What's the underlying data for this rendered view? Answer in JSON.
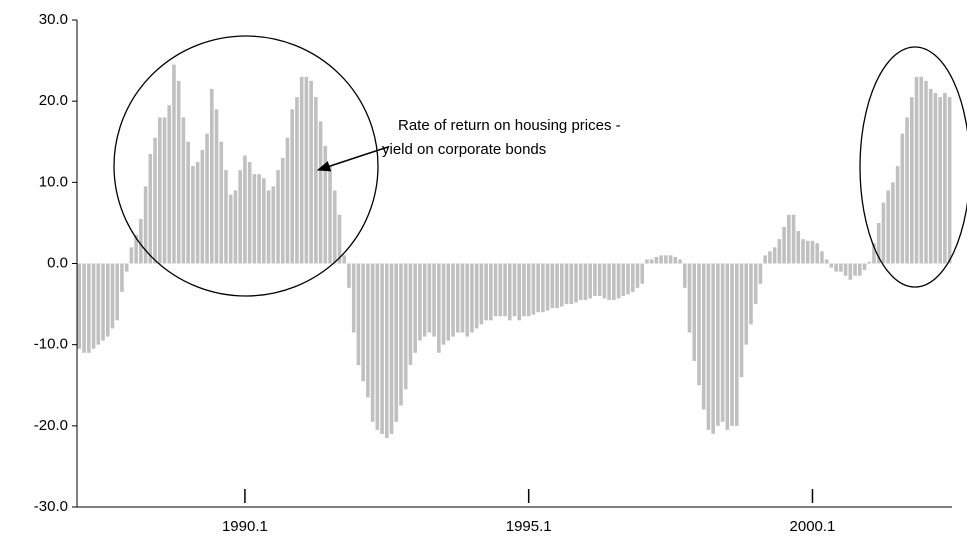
{
  "chart_data": {
    "type": "bar",
    "categories": [
      null,
      null,
      null,
      null,
      null,
      null,
      null,
      null,
      null,
      null,
      null,
      null,
      null,
      null,
      null,
      null,
      null,
      null,
      null,
      null,
      null,
      null,
      null,
      null,
      null,
      null,
      null,
      null,
      null,
      null,
      null,
      null,
      null,
      null,
      null,
      "1990.1",
      null,
      null,
      null,
      null,
      null,
      null,
      null,
      null,
      null,
      null,
      null,
      null,
      null,
      null,
      null,
      null,
      null,
      null,
      null,
      null,
      null,
      null,
      null,
      null,
      null,
      null,
      null,
      null,
      null,
      null,
      null,
      null,
      null,
      null,
      null,
      null,
      null,
      null,
      null,
      null,
      null,
      null,
      null,
      null,
      null,
      null,
      null,
      null,
      null,
      null,
      null,
      null,
      null,
      null,
      null,
      null,
      null,
      null,
      null,
      "1995.1",
      null,
      null,
      null,
      null,
      null,
      null,
      null,
      null,
      null,
      null,
      null,
      null,
      null,
      null,
      null,
      null,
      null,
      null,
      null,
      null,
      null,
      null,
      null,
      null,
      null,
      null,
      null,
      null,
      null,
      null,
      null,
      null,
      null,
      null,
      null,
      null,
      null,
      null,
      null,
      null,
      null,
      null,
      null,
      null,
      null,
      null,
      null,
      null,
      null,
      null,
      null,
      null,
      null,
      null,
      null,
      null,
      null,
      null,
      null,
      "2000.1",
      null,
      null,
      null,
      null,
      null,
      null,
      null,
      null,
      null,
      null,
      null,
      null,
      null,
      null,
      null,
      null,
      null,
      null,
      null,
      null,
      null,
      null,
      null,
      null,
      null,
      null,
      null,
      null,
      null
    ],
    "values": [
      -10.5,
      -11,
      -11,
      -10.5,
      -10,
      -9.5,
      -9,
      -8,
      -7,
      -3.5,
      -1,
      2,
      3.5,
      5.5,
      9.5,
      13.5,
      15.5,
      18,
      18,
      19.5,
      24.5,
      22.5,
      18,
      15,
      12,
      12.5,
      14,
      16,
      21.5,
      19,
      15,
      11.5,
      8.5,
      9,
      11.5,
      13.3,
      12.5,
      11,
      11,
      10.5,
      9,
      9.5,
      11.5,
      13,
      15.5,
      19,
      20.5,
      23,
      23,
      22.5,
      20.5,
      17.5,
      14.5,
      12,
      9,
      6,
      1,
      -3,
      -8.5,
      -12.5,
      -14.5,
      -16.5,
      -19.5,
      -20.5,
      -21,
      -21.5,
      -21,
      -19.5,
      -17.5,
      -15.5,
      -12.5,
      -11,
      -9.5,
      -9,
      -8.5,
      -9,
      -11,
      -10,
      -9.5,
      -9,
      -8.5,
      -8.5,
      -9,
      -8.5,
      -8,
      -7.5,
      -7,
      -7,
      -6.5,
      -6.5,
      -6.5,
      -7,
      -6.5,
      -7,
      -6.5,
      -6.5,
      -6.3,
      -6,
      -6,
      -5.8,
      -5.5,
      -5.5,
      -5.3,
      -5,
      -5,
      -4.8,
      -4.5,
      -4.5,
      -4.3,
      -4,
      -4,
      -4.3,
      -4.5,
      -4.5,
      -4.3,
      -4,
      -3.8,
      -3.5,
      -3,
      -2.5,
      0.5,
      0.5,
      0.8,
      1,
      1,
      1,
      0.8,
      0.5,
      -3,
      -8.5,
      -12,
      -15,
      -18,
      -20.5,
      -21,
      -20,
      -19.5,
      -20.5,
      -20,
      -20,
      -14,
      -10,
      -7.5,
      -5,
      -2.5,
      1,
      1.5,
      2,
      3,
      4.5,
      6,
      6,
      4,
      3,
      2.8,
      2.8,
      2.5,
      1.5,
      0.5,
      -0.5,
      -1,
      -1,
      -1.5,
      -2,
      -1.5,
      -1.5,
      -0.8,
      0.2,
      2.5,
      5,
      7.5,
      9,
      10,
      12,
      16,
      18,
      20.5,
      23,
      23,
      22.5,
      21.5,
      21,
      20.5,
      21,
      20.5
    ],
    "color": "#c0c0c0",
    "ylim": [
      -30,
      30
    ],
    "yticks": [
      {
        "value": -30,
        "label": "-30.0"
      },
      {
        "value": -20,
        "label": "-20.0"
      },
      {
        "value": -10,
        "label": "-10.0"
      },
      {
        "value": 0,
        "label": "0.0"
      },
      {
        "value": 10,
        "label": "10.0"
      },
      {
        "value": 20,
        "label": "20.0"
      },
      {
        "value": 30,
        "label": "30.0"
      }
    ],
    "annotations": [
      "Rate of return on housing prices -",
      "yield on corporate bonds"
    ]
  }
}
